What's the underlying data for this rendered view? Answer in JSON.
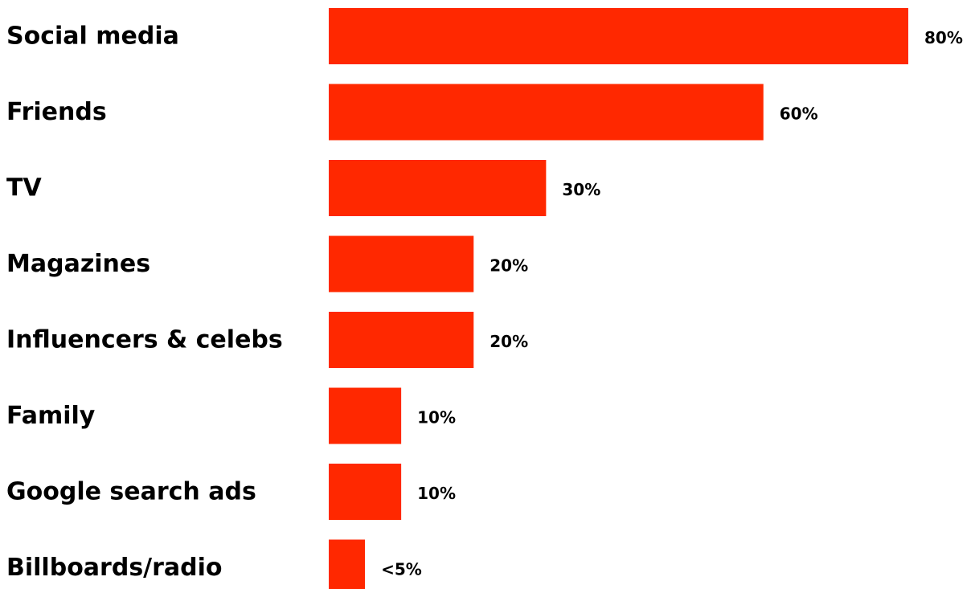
{
  "chart_data": {
    "type": "bar",
    "orientation": "horizontal",
    "categories": [
      "Social media",
      "Friends",
      "TV",
      "Magazines",
      "Influencers & celebs",
      "Family",
      "Google search ads",
      "Billboards/radio"
    ],
    "values": [
      80,
      60,
      30,
      20,
      20,
      10,
      10,
      5
    ],
    "value_labels": [
      "80%",
      "60%",
      "30%",
      "20%",
      "20%",
      "10%",
      "10%",
      "<5%"
    ],
    "xlim": [
      0,
      80
    ],
    "grid": false,
    "legend": "none",
    "colors": {
      "bar": "#ff2800",
      "text": "#000000",
      "background": "#ffffff"
    }
  }
}
